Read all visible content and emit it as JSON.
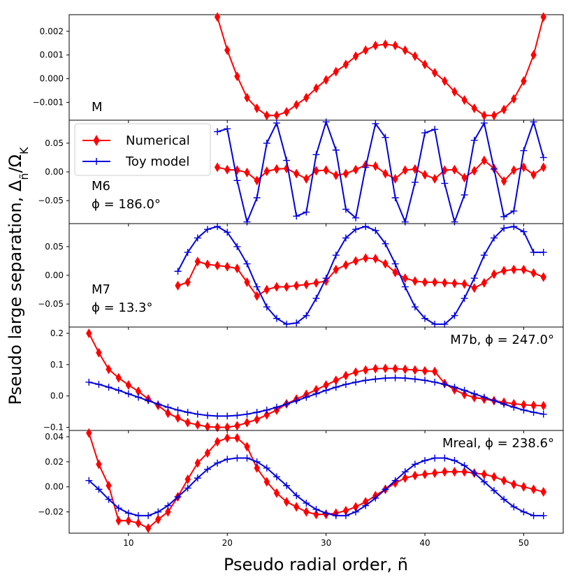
{
  "figure": {
    "xlabel": "Pseudo radial order, ñ",
    "ylabel": "Pseudo large separation, Δ",
    "ylabel_sub": "ñ",
    "ylabel_tail": "/Ω",
    "ylabel_sub2": "K",
    "x_ticks": [
      "10",
      "20",
      "30",
      "40",
      "50"
    ]
  },
  "legend": {
    "numerical": "Numerical",
    "toy": "Toy model"
  },
  "colors": {
    "numerical": "#ff0000",
    "toy": "#0000dd"
  },
  "chart_data": [
    {
      "type": "line",
      "label_lines": [
        "M"
      ],
      "xlim": [
        4,
        54
      ],
      "ylim": [
        -0.00175,
        0.0027
      ],
      "yticks": [
        -0.001,
        0,
        0.001,
        0.002
      ],
      "ytick_labels": [
        "−0.001",
        "0.000",
        "0.001",
        "0.002"
      ],
      "series": [
        {
          "name": "Numerical",
          "x": [
            19,
            20,
            21,
            22,
            23,
            24,
            25,
            26,
            27,
            28,
            29,
            30,
            31,
            32,
            33,
            34,
            35,
            36,
            37,
            38,
            39,
            40,
            41,
            42,
            43,
            44,
            45,
            46,
            47,
            48,
            49,
            50,
            51,
            52
          ],
          "y": [
            0.0026,
            0.0012,
            0.0001,
            -0.0008,
            -0.00125,
            -0.00155,
            -0.00155,
            -0.0014,
            -0.0011,
            -0.0008,
            -0.0004,
            -5e-05,
            0.0003,
            0.0006,
            0.00095,
            0.0012,
            0.0014,
            0.00145,
            0.0014,
            0.0012,
            0.00095,
            0.0006,
            0.00025,
            -0.0001,
            -0.00055,
            -0.0009,
            -0.00125,
            -0.00155,
            -0.00155,
            -0.0013,
            -0.00085,
            -0.0001,
            0.001,
            0.0026
          ]
        }
      ]
    },
    {
      "type": "line",
      "label_lines": [
        "M6",
        "ϕ = 186.0°"
      ],
      "xlim": [
        4,
        54
      ],
      "ylim": [
        -0.09,
        0.09
      ],
      "yticks": [
        -0.05,
        0,
        0.05
      ],
      "ytick_labels": [
        "−0.05",
        "0.00",
        "0.05"
      ],
      "legend": "upper-left",
      "series": [
        {
          "name": "Numerical",
          "x": [
            19,
            20,
            21,
            22,
            23,
            24,
            25,
            26,
            27,
            28,
            29,
            30,
            31,
            32,
            33,
            34,
            35,
            36,
            37,
            38,
            39,
            40,
            41,
            42,
            43,
            44,
            45,
            46,
            47,
            48,
            49,
            50,
            51,
            52
          ],
          "y": [
            0.008,
            0.004,
            0.003,
            -0.001,
            -0.015,
            0.001,
            0.005,
            0.006,
            -0.003,
            -0.012,
            0.002,
            0.003,
            -0.006,
            -0.003,
            0.004,
            0.012,
            0.01,
            -0.003,
            -0.012,
            0.003,
            0.005,
            -0.005,
            -0.012,
            0.003,
            0.004,
            -0.01,
            0.002,
            0.02,
            0.006,
            -0.016,
            0.003,
            0.008,
            -0.005,
            0.008
          ]
        },
        {
          "name": "Toy model",
          "x": [
            19,
            20,
            21,
            22,
            23,
            24,
            25,
            26,
            27,
            28,
            29,
            30,
            31,
            32,
            33,
            34,
            35,
            36,
            37,
            38,
            39,
            40,
            41,
            42,
            43,
            44,
            45,
            46,
            47,
            48,
            49,
            50,
            51,
            52
          ],
          "y": [
            0.07,
            0.075,
            -0.015,
            -0.087,
            -0.045,
            0.05,
            0.085,
            0.02,
            -0.077,
            -0.07,
            0.03,
            0.087,
            0.038,
            -0.065,
            -0.08,
            0.008,
            0.084,
            0.06,
            -0.045,
            -0.087,
            -0.018,
            0.068,
            0.074,
            -0.02,
            -0.087,
            -0.04,
            0.055,
            0.085,
            0.005,
            -0.078,
            -0.068,
            0.037,
            0.087,
            0.025
          ]
        }
      ]
    },
    {
      "type": "line",
      "label_lines": [
        "M7",
        "ϕ = 13.3°"
      ],
      "xlim": [
        4,
        54
      ],
      "ylim": [
        -0.09,
        0.09
      ],
      "yticks": [
        -0.05,
        0,
        0.05
      ],
      "ytick_labels": [
        "−0.05",
        "0.00",
        "0.05"
      ],
      "series": [
        {
          "name": "Numerical",
          "x": [
            15,
            16,
            17,
            18,
            19,
            20,
            21,
            22,
            23,
            24,
            25,
            26,
            27,
            28,
            29,
            30,
            31,
            32,
            33,
            34,
            35,
            36,
            37,
            38,
            39,
            40,
            41,
            42,
            43,
            44,
            45,
            46,
            47,
            48,
            49,
            50,
            51,
            52
          ],
          "y": [
            -0.018,
            -0.012,
            0.024,
            0.019,
            0.017,
            0.015,
            0.012,
            -0.012,
            -0.036,
            -0.025,
            -0.02,
            -0.02,
            -0.018,
            -0.016,
            -0.013,
            -0.01,
            0.01,
            0.018,
            0.025,
            0.03,
            0.029,
            0.02,
            0.005,
            -0.005,
            -0.01,
            -0.012,
            -0.012,
            -0.013,
            -0.014,
            -0.015,
            -0.022,
            -0.013,
            0.002,
            0.008,
            0.01,
            0.01,
            0.004,
            -0.003
          ]
        },
        {
          "name": "Toy model",
          "x": [
            15,
            16,
            17,
            18,
            19,
            20,
            21,
            22,
            23,
            24,
            25,
            26,
            27,
            28,
            29,
            30,
            31,
            32,
            33,
            34,
            35,
            36,
            37,
            38,
            39,
            40,
            41,
            42,
            43,
            44,
            45,
            46,
            47,
            48,
            49,
            50,
            51,
            52
          ],
          "y": [
            0.007,
            0.04,
            0.065,
            0.08,
            0.085,
            0.075,
            0.05,
            0.02,
            -0.02,
            -0.055,
            -0.075,
            -0.085,
            -0.083,
            -0.07,
            -0.04,
            -0.005,
            0.035,
            0.065,
            0.08,
            0.085,
            0.078,
            0.055,
            0.02,
            -0.02,
            -0.055,
            -0.075,
            -0.085,
            -0.085,
            -0.07,
            -0.04,
            -0.005,
            0.035,
            0.065,
            0.082,
            0.085,
            0.076,
            0.04,
            0.04
          ]
        }
      ]
    },
    {
      "type": "line",
      "label_lines": [
        "M7b, ϕ = 247.0°"
      ],
      "xlim": [
        4,
        54
      ],
      "ylim": [
        -0.11,
        0.22
      ],
      "yticks": [
        -0.1,
        0,
        0.1,
        0.2
      ],
      "ytick_labels": [
        "−0.1",
        "0.0",
        "0.1",
        "0.2"
      ],
      "series": [
        {
          "name": "Numerical",
          "x": [
            6,
            7,
            8,
            9,
            10,
            11,
            12,
            13,
            14,
            15,
            16,
            17,
            18,
            19,
            20,
            21,
            22,
            23,
            24,
            25,
            26,
            27,
            28,
            29,
            30,
            31,
            32,
            33,
            34,
            35,
            36,
            37,
            38,
            39,
            40,
            41,
            42,
            43,
            44,
            45,
            46,
            47,
            48,
            49,
            50,
            51,
            52
          ],
          "y": [
            0.2,
            0.138,
            0.085,
            0.058,
            0.035,
            0.015,
            -0.01,
            -0.03,
            -0.055,
            -0.07,
            -0.085,
            -0.092,
            -0.098,
            -0.1,
            -0.1,
            -0.095,
            -0.085,
            -0.075,
            -0.06,
            -0.045,
            -0.025,
            -0.01,
            0.005,
            0.02,
            0.035,
            0.05,
            0.065,
            0.076,
            0.083,
            0.087,
            0.088,
            0.087,
            0.085,
            0.083,
            0.08,
            0.078,
            0.04,
            0.02,
            0.005,
            -0.005,
            -0.01,
            -0.015,
            -0.02,
            -0.025,
            -0.028,
            -0.03,
            -0.031
          ]
        },
        {
          "name": "Toy model",
          "x": [
            6,
            7,
            8,
            9,
            10,
            11,
            12,
            13,
            14,
            15,
            16,
            17,
            18,
            19,
            20,
            21,
            22,
            23,
            24,
            25,
            26,
            27,
            28,
            29,
            30,
            31,
            32,
            33,
            34,
            35,
            36,
            37,
            38,
            39,
            40,
            41,
            42,
            43,
            44,
            45,
            46,
            47,
            48,
            49,
            50,
            51,
            52
          ],
          "y": [
            0.044,
            0.037,
            0.028,
            0.018,
            0.007,
            -0.004,
            -0.015,
            -0.026,
            -0.036,
            -0.045,
            -0.052,
            -0.058,
            -0.062,
            -0.064,
            -0.064,
            -0.062,
            -0.058,
            -0.052,
            -0.045,
            -0.036,
            -0.026,
            -0.015,
            -0.004,
            0.007,
            0.018,
            0.028,
            0.037,
            0.044,
            0.05,
            0.054,
            0.057,
            0.058,
            0.057,
            0.054,
            0.05,
            0.044,
            0.037,
            0.028,
            0.018,
            0.007,
            -0.004,
            -0.015,
            -0.026,
            -0.036,
            -0.045,
            -0.052,
            -0.058
          ]
        }
      ]
    },
    {
      "type": "line",
      "label_lines": [
        "Mreal, ϕ = 238.6°"
      ],
      "xlim": [
        4,
        54
      ],
      "ylim": [
        -0.037,
        0.045
      ],
      "yticks": [
        -0.02,
        0,
        0.02,
        0.04
      ],
      "ytick_labels": [
        "−0.02",
        "0.00",
        "0.02",
        "0.04"
      ],
      "series": [
        {
          "name": "Numerical",
          "x": [
            6,
            7,
            8,
            9,
            10,
            11,
            12,
            13,
            14,
            15,
            16,
            17,
            18,
            19,
            20,
            21,
            22,
            23,
            24,
            25,
            26,
            27,
            28,
            29,
            30,
            31,
            32,
            33,
            34,
            35,
            36,
            37,
            38,
            39,
            40,
            41,
            42,
            43,
            44,
            45,
            46,
            47,
            48,
            49,
            50,
            51,
            52
          ],
          "y": [
            0.043,
            0.018,
            0.001,
            -0.027,
            -0.027,
            -0.029,
            -0.033,
            -0.026,
            -0.02,
            -0.008,
            0.006,
            0.019,
            0.027,
            0.036,
            0.039,
            0.039,
            0.032,
            0.015,
            0.004,
            -0.005,
            -0.012,
            -0.016,
            -0.02,
            -0.022,
            -0.022,
            -0.021,
            -0.019,
            -0.016,
            -0.012,
            -0.007,
            -0.002,
            0.003,
            0.007,
            0.009,
            0.01,
            0.011,
            0.012,
            0.012,
            0.012,
            0.011,
            0.01,
            0.008,
            0.005,
            0.002,
            0,
            -0.002,
            -0.004
          ]
        },
        {
          "name": "Toy model",
          "x": [
            6,
            7,
            8,
            9,
            10,
            11,
            12,
            13,
            14,
            15,
            16,
            17,
            18,
            19,
            20,
            21,
            22,
            23,
            24,
            25,
            26,
            27,
            28,
            29,
            30,
            31,
            32,
            33,
            34,
            35,
            36,
            37,
            38,
            39,
            40,
            41,
            42,
            43,
            44,
            45,
            46,
            47,
            48,
            49,
            50,
            51,
            52
          ],
          "y": [
            0.005,
            -0.002,
            -0.01,
            -0.017,
            -0.021,
            -0.023,
            -0.023,
            -0.02,
            -0.015,
            -0.008,
            -0.001,
            0.007,
            0.014,
            0.019,
            0.022,
            0.023,
            0.023,
            0.02,
            0.015,
            0.008,
            0.001,
            -0.007,
            -0.013,
            -0.018,
            -0.021,
            -0.023,
            -0.023,
            -0.02,
            -0.015,
            -0.009,
            -0.002,
            0.005,
            0.012,
            0.018,
            0.021,
            0.023,
            0.023,
            0.021,
            0.017,
            0.011,
            0.004,
            -0.003,
            -0.01,
            -0.016,
            -0.02,
            -0.023,
            -0.023
          ]
        }
      ]
    }
  ]
}
